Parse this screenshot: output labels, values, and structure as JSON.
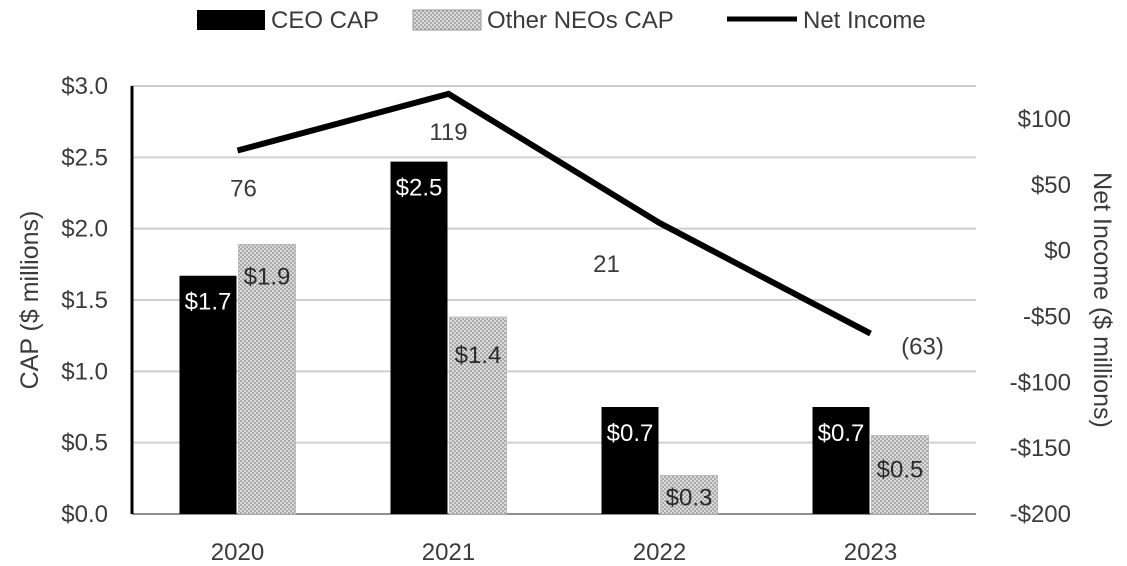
{
  "chart_data": {
    "type": "bar",
    "categories": [
      "2020",
      "2021",
      "2022",
      "2023"
    ],
    "series": [
      {
        "name": "CEO CAP",
        "type": "bar",
        "axis": "left",
        "values": [
          1.7,
          2.5,
          0.7,
          0.7
        ],
        "bar_heights": [
          1.67,
          2.47,
          0.75,
          0.75
        ],
        "labels": [
          "$1.7",
          "$2.5",
          "$0.7",
          "$0.7"
        ],
        "color": "#000000"
      },
      {
        "name": "Other NEOs CAP",
        "type": "bar",
        "axis": "left",
        "values": [
          1.9,
          1.4,
          0.3,
          0.5
        ],
        "bar_heights": [
          1.89,
          1.38,
          0.27,
          0.55
        ],
        "labels": [
          "$1.9",
          "$1.4",
          "$0.3",
          "$0.5"
        ],
        "color": "#c8c8c8",
        "pattern": "dotted"
      },
      {
        "name": "Net Income",
        "type": "line",
        "axis": "right",
        "values": [
          76,
          119,
          21,
          -63
        ],
        "labels": [
          "76",
          "119",
          "21",
          "(63)"
        ],
        "color": "#000000"
      }
    ],
    "y_left": {
      "label": "CAP ($ millions)",
      "ylim": [
        0,
        3.0
      ],
      "ticks": [
        0.0,
        0.5,
        1.0,
        1.5,
        2.0,
        2.5,
        3.0
      ],
      "tick_labels": [
        "$0.0",
        "$0.5",
        "$1.0",
        "$1.5",
        "$2.0",
        "$2.5",
        "$3.0"
      ]
    },
    "y_right": {
      "label": "Net Income ($ millions)",
      "ylim": [
        -200,
        125
      ],
      "ticks": [
        100,
        50,
        0,
        -50,
        -100,
        -150,
        -200
      ],
      "tick_labels": [
        "$100",
        "$50",
        "$0",
        "-$50",
        "-$100",
        "-$150",
        "-$200"
      ]
    },
    "legend": {
      "placement": "top-center",
      "items": [
        "CEO CAP",
        "Other NEOs CAP",
        "Net Income"
      ]
    },
    "grid": true
  }
}
